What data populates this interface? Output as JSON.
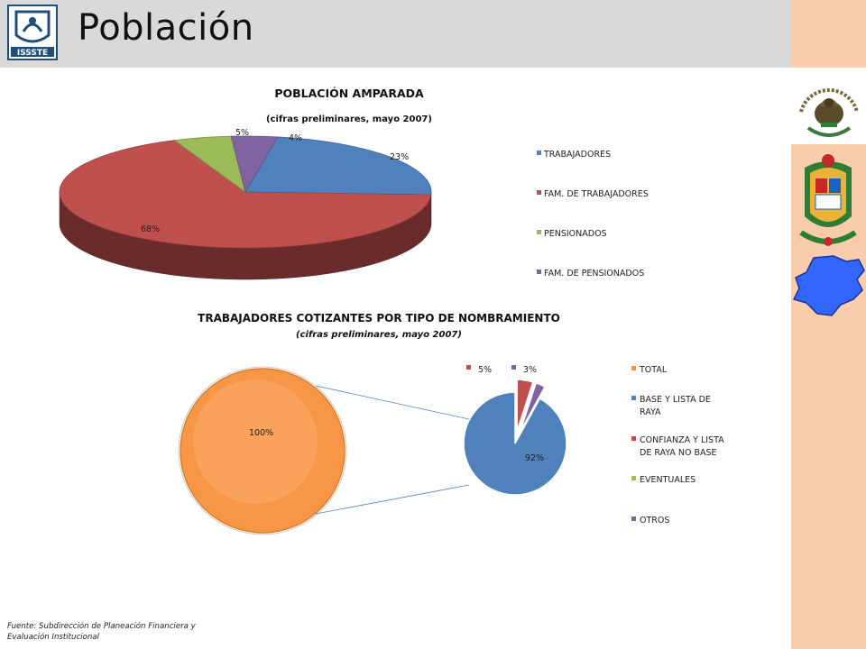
{
  "page": {
    "title": "Población",
    "logo_text": "ISSSTE",
    "source_line1": "Fuente: Subdirección de Planeación Financiera y",
    "source_line2": "Evaluación Institucional"
  },
  "colors": {
    "header_bg": "#d9d9d9",
    "side_band": "#f9ccab",
    "blue": "#4f81bd",
    "red": "#c0504d",
    "green": "#9bbb59",
    "purple": "#8064a2",
    "orange": "#f79646"
  },
  "icons": [
    "issste-logo-icon",
    "mexico-emblem-icon",
    "michoacan-crest-icon",
    "michoacan-map-icon"
  ],
  "chart_data": [
    {
      "type": "pie",
      "title": "POBLACIÓN AMPARADA",
      "subtitle": "(cifras preliminares, mayo 2007)",
      "style": "3d",
      "legend_position": "right",
      "categories": [
        "TRABAJADORES",
        "FAM. DE TRABAJADORES",
        "PENSIONADOS",
        "FAM. DE PENSIONADOS"
      ],
      "values": [
        23,
        68,
        5,
        4
      ],
      "labels": [
        "23%",
        "68%",
        "5%",
        "4%"
      ],
      "colors": [
        "#4f81bd",
        "#c0504d",
        "#9bbb59",
        "#8064a2"
      ]
    },
    {
      "type": "pie",
      "subtype": "pie-of-pie",
      "title": "TRABAJADORES COTIZANTES POR TIPO DE NOMBRAMIENTO",
      "subtitle": "(cifras preliminares, mayo 2007)",
      "legend_position": "right",
      "legend": [
        "TOTAL",
        "BASE Y LISTA DE RAYA",
        "CONFIANZA Y LISTA DE RAYA NO BASE",
        "EVENTUALES",
        "OTROS"
      ],
      "legend_colors": [
        "#f79646",
        "#4f81bd",
        "#c0504d",
        "#9bbb59",
        "#8064a2"
      ],
      "main_pie": {
        "categories": [
          "TOTAL"
        ],
        "values": [
          100
        ],
        "labels": [
          "100%"
        ]
      },
      "secondary_pie": {
        "categories": [
          "BASE Y LISTA DE RAYA",
          "CONFIANZA Y LISTA DE RAYA NO BASE",
          "OTROS"
        ],
        "values": [
          92,
          5,
          3
        ],
        "labels": [
          "92%",
          "5%",
          "3%"
        ]
      }
    }
  ]
}
